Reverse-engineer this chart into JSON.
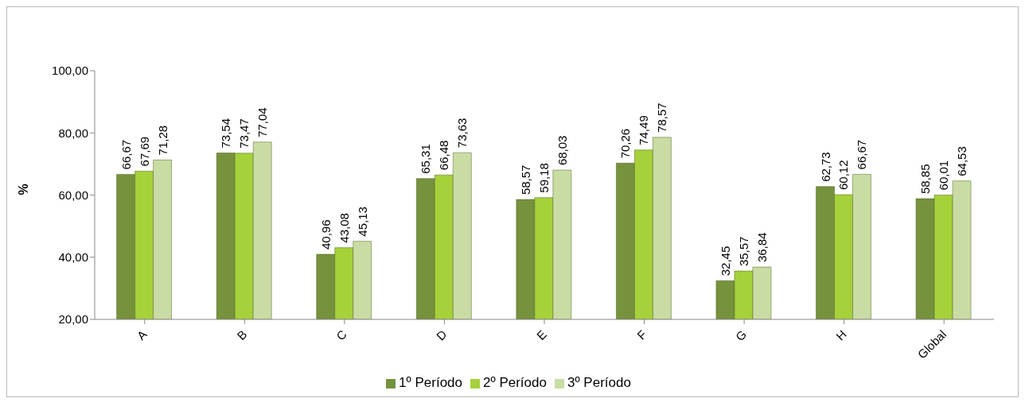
{
  "chart_data": {
    "type": "bar",
    "ylabel": "%",
    "categories": [
      "A",
      "B",
      "C",
      "D",
      "E",
      "F",
      "G",
      "H",
      "Global"
    ],
    "series": [
      {
        "name": "1º Período",
        "color": "#76923c",
        "values": [
          66.67,
          73.54,
          40.96,
          65.31,
          58.57,
          70.26,
          32.45,
          62.73,
          58.85
        ],
        "value_labels": [
          "66,67",
          "73,54",
          "40,96",
          "65,31",
          "58,57",
          "70,26",
          "32,45",
          "62,73",
          "58,85"
        ]
      },
      {
        "name": "2º Período",
        "color": "#a6d13a",
        "values": [
          67.69,
          73.47,
          43.08,
          66.48,
          59.18,
          74.49,
          35.57,
          60.12,
          60.01
        ],
        "value_labels": [
          "67,69",
          "73,47",
          "43,08",
          "66,48",
          "59,18",
          "74,49",
          "35,57",
          "60,12",
          "60,01"
        ]
      },
      {
        "name": "3º Período",
        "color": "#c9dca4",
        "values": [
          71.28,
          77.04,
          45.13,
          73.63,
          68.03,
          78.57,
          36.84,
          66.67,
          64.53
        ],
        "value_labels": [
          "71,28",
          "77,04",
          "45,13",
          "73,63",
          "68,03",
          "78,57",
          "36,84",
          "66,67",
          "64,53"
        ]
      }
    ],
    "ylim": [
      20,
      100
    ],
    "yticks": [
      {
        "value": 20,
        "label": "20,00"
      },
      {
        "value": 40,
        "label": "40,00"
      },
      {
        "value": 60,
        "label": "60,00"
      },
      {
        "value": 80,
        "label": "80,00"
      },
      {
        "value": 100,
        "label": "100,00"
      }
    ],
    "legend": "bottom"
  }
}
